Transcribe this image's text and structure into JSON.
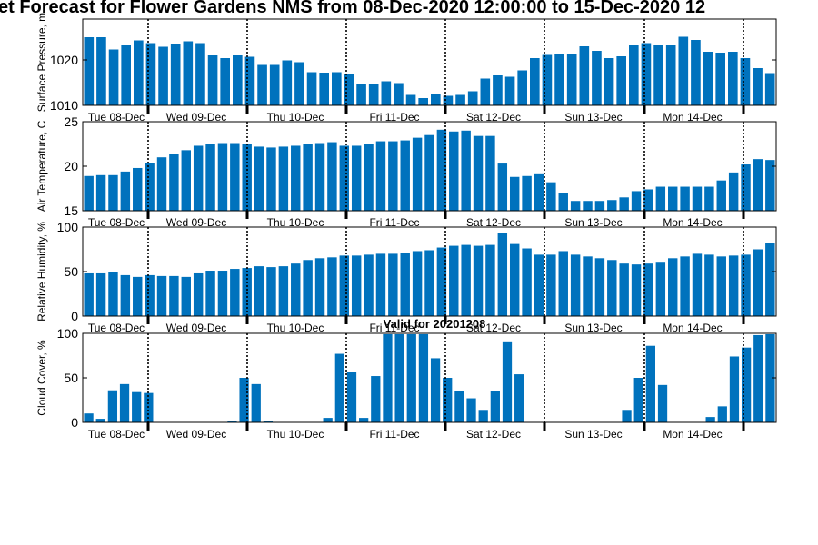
{
  "figure": {
    "title": "et Forecast for Flower Gardens NMS from 08-Dec-2020 12:00:00 to 15-Dec-2020 12",
    "valid_label": "Valid for 20201208",
    "day_labels": [
      "Tue 08-Dec",
      "Wed 09-Dec",
      "Thu 10-Dec",
      "Fri 11-Dec",
      "Sat 12-Dec",
      "Sun 13-Dec",
      "Mon 14-Dec"
    ],
    "bar_color": "#0072BD"
  },
  "chart_data": [
    {
      "type": "bar",
      "ylabel": "Surface Pressure, m",
      "ylim": [
        1010,
        1029
      ],
      "yticks": [
        1010,
        1020
      ],
      "values": [
        1025,
        1025,
        1022.3,
        1023.4,
        1024.3,
        1023.7,
        1022.9,
        1023.6,
        1024.1,
        1023.7,
        1021,
        1020.4,
        1021,
        1020.7,
        1018.9,
        1018.9,
        1019.9,
        1019.5,
        1017.3,
        1017.2,
        1017.3,
        1016.8,
        1014.8,
        1014.8,
        1015.3,
        1014.9,
        1012.3,
        1011.6,
        1012.4,
        1012.1,
        1012.3,
        1013.1,
        1015.9,
        1016.6,
        1016.3,
        1017.7,
        1020.4,
        1021.1,
        1021.3,
        1021.3,
        1023,
        1022,
        1020.4,
        1020.8,
        1023.2,
        1023.7,
        1023.3,
        1023.4,
        1025.1,
        1024.4,
        1021.8,
        1021.6,
        1021.8,
        1020.4,
        1018.2,
        1017.1
      ]
    },
    {
      "type": "bar",
      "ylabel": "Air Temperature, C",
      "ylim": [
        15,
        25
      ],
      "yticks": [
        15,
        20,
        25
      ],
      "values": [
        18.9,
        19,
        19,
        19.4,
        19.8,
        20.4,
        21,
        21.4,
        21.8,
        22.3,
        22.5,
        22.6,
        22.6,
        22.5,
        22.2,
        22.1,
        22.2,
        22.3,
        22.5,
        22.6,
        22.7,
        22.3,
        22.3,
        22.5,
        22.8,
        22.8,
        22.9,
        23.2,
        23.5,
        24.1,
        23.9,
        24,
        23.4,
        23.4,
        20.3,
        18.8,
        18.9,
        19.1,
        18.2,
        17,
        16.1,
        16.1,
        16.1,
        16.2,
        16.5,
        17.2,
        17.4,
        17.7,
        17.7,
        17.7,
        17.7,
        17.7,
        18.4,
        19.3,
        20.2,
        20.8,
        20.7
      ]
    },
    {
      "type": "bar",
      "ylabel": "Relative Humidity, %",
      "ylim": [
        0,
        100
      ],
      "yticks": [
        0,
        50,
        100
      ],
      "values": [
        48,
        48,
        50,
        46,
        44,
        46,
        45,
        45,
        44,
        48,
        51,
        51,
        53,
        54,
        56,
        55,
        56,
        59,
        63,
        65,
        66,
        68,
        68,
        69,
        70,
        70,
        71,
        73,
        74,
        77,
        79,
        80,
        79,
        80,
        93,
        81,
        76,
        69,
        69,
        73,
        69,
        67,
        65,
        63,
        59,
        58,
        59,
        61,
        65,
        67,
        70,
        69,
        67,
        68,
        69,
        75,
        82
      ]
    },
    {
      "type": "bar",
      "ylabel": "Cloud Cover, %",
      "ylim": [
        0,
        100
      ],
      "yticks": [
        0,
        50,
        100
      ],
      "values": [
        10,
        4,
        36,
        43,
        34,
        33,
        0,
        0,
        0,
        0,
        0,
        0,
        1,
        50,
        43,
        2,
        0,
        0,
        0,
        0,
        5,
        77,
        57,
        5,
        52,
        99,
        99,
        99,
        99,
        72,
        50,
        35,
        27,
        14,
        35,
        91,
        54,
        0,
        0,
        0,
        0,
        0,
        0,
        0,
        0,
        14,
        50,
        86,
        42,
        0,
        0,
        0,
        6,
        18,
        74,
        84,
        98,
        99
      ]
    }
  ]
}
